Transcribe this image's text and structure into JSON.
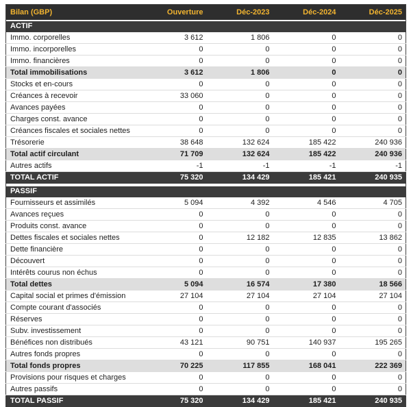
{
  "header": {
    "title": "Bilan (GBP)",
    "columns": [
      "Ouverture",
      "Déc-2023",
      "Déc-2024",
      "Déc-2025"
    ]
  },
  "colors": {
    "header_bg": "#2e2e2e",
    "header_text": "#f2b430",
    "band_bg": "#3b3b3b",
    "band_text": "#ffffff",
    "subtotal_bg": "#dedede",
    "row_border": "#dcdcdc",
    "table_border": "#414141",
    "text": "#1d1d1d"
  },
  "sections": [
    {
      "name": "ACTIF",
      "rows": [
        {
          "label": "Immo. corporelles",
          "values": [
            "3 612",
            "1 806",
            "0",
            "0"
          ],
          "style": "normal"
        },
        {
          "label": "Immo. incorporelles",
          "values": [
            "0",
            "0",
            "0",
            "0"
          ],
          "style": "normal"
        },
        {
          "label": "Immo. financières",
          "values": [
            "0",
            "0",
            "0",
            "0"
          ],
          "style": "normal"
        },
        {
          "label": "Total immobilisations",
          "values": [
            "3 612",
            "1 806",
            "0",
            "0"
          ],
          "style": "subtotal"
        },
        {
          "label": "Stocks et en-cours",
          "values": [
            "0",
            "0",
            "0",
            "0"
          ],
          "style": "normal"
        },
        {
          "label": "Créances à recevoir",
          "values": [
            "33 060",
            "0",
            "0",
            "0"
          ],
          "style": "normal"
        },
        {
          "label": "Avances payées",
          "values": [
            "0",
            "0",
            "0",
            "0"
          ],
          "style": "normal"
        },
        {
          "label": "Charges const. avance",
          "values": [
            "0",
            "0",
            "0",
            "0"
          ],
          "style": "normal"
        },
        {
          "label": "Créances fiscales et sociales nettes",
          "values": [
            "0",
            "0",
            "0",
            "0"
          ],
          "style": "normal"
        },
        {
          "label": "Trésorerie",
          "values": [
            "38 648",
            "132 624",
            "185 422",
            "240 936"
          ],
          "style": "normal"
        },
        {
          "label": "Total actif circulant",
          "values": [
            "71 709",
            "132 624",
            "185 422",
            "240 936"
          ],
          "style": "subtotal"
        },
        {
          "label": "Autres actifs",
          "values": [
            "-1",
            "-1",
            "-1",
            "-1"
          ],
          "style": "normal"
        },
        {
          "label": "TOTAL ACTIF",
          "values": [
            "75 320",
            "134 429",
            "185 421",
            "240 935"
          ],
          "style": "grand"
        }
      ]
    },
    {
      "name": "PASSIF",
      "rows": [
        {
          "label": "Fournisseurs et assimilés",
          "values": [
            "5 094",
            "4 392",
            "4 546",
            "4 705"
          ],
          "style": "normal"
        },
        {
          "label": "Avances reçues",
          "values": [
            "0",
            "0",
            "0",
            "0"
          ],
          "style": "normal"
        },
        {
          "label": "Produits const. avance",
          "values": [
            "0",
            "0",
            "0",
            "0"
          ],
          "style": "normal"
        },
        {
          "label": "Dettes fiscales et sociales nettes",
          "values": [
            "0",
            "12 182",
            "12 835",
            "13 862"
          ],
          "style": "normal"
        },
        {
          "label": "Dette financière",
          "values": [
            "0",
            "0",
            "0",
            "0"
          ],
          "style": "normal"
        },
        {
          "label": "Découvert",
          "values": [
            "0",
            "0",
            "0",
            "0"
          ],
          "style": "normal"
        },
        {
          "label": "Intérêts courus non échus",
          "values": [
            "0",
            "0",
            "0",
            "0"
          ],
          "style": "normal"
        },
        {
          "label": "Total dettes",
          "values": [
            "5 094",
            "16 574",
            "17 380",
            "18 566"
          ],
          "style": "subtotal"
        },
        {
          "label": "Capital social et primes d'émission",
          "values": [
            "27 104",
            "27 104",
            "27 104",
            "27 104"
          ],
          "style": "normal"
        },
        {
          "label": "Compte courant d'associés",
          "values": [
            "0",
            "0",
            "0",
            "0"
          ],
          "style": "normal"
        },
        {
          "label": "Réserves",
          "values": [
            "0",
            "0",
            "0",
            "0"
          ],
          "style": "normal"
        },
        {
          "label": "Subv. investissement",
          "values": [
            "0",
            "0",
            "0",
            "0"
          ],
          "style": "normal"
        },
        {
          "label": "Bénéfices non distribués",
          "values": [
            "43 121",
            "90 751",
            "140 937",
            "195 265"
          ],
          "style": "normal"
        },
        {
          "label": "Autres fonds propres",
          "values": [
            "0",
            "0",
            "0",
            "0"
          ],
          "style": "normal"
        },
        {
          "label": "Total fonds propres",
          "values": [
            "70 225",
            "117 855",
            "168 041",
            "222 369"
          ],
          "style": "subtotal"
        },
        {
          "label": "Provisions pour risques et charges",
          "values": [
            "0",
            "0",
            "0",
            "0"
          ],
          "style": "normal"
        },
        {
          "label": "Autres passifs",
          "values": [
            "0",
            "0",
            "0",
            "0"
          ],
          "style": "normal"
        },
        {
          "label": "TOTAL PASSIF",
          "values": [
            "75 320",
            "134 429",
            "185 421",
            "240 935"
          ],
          "style": "grand"
        }
      ]
    }
  ]
}
